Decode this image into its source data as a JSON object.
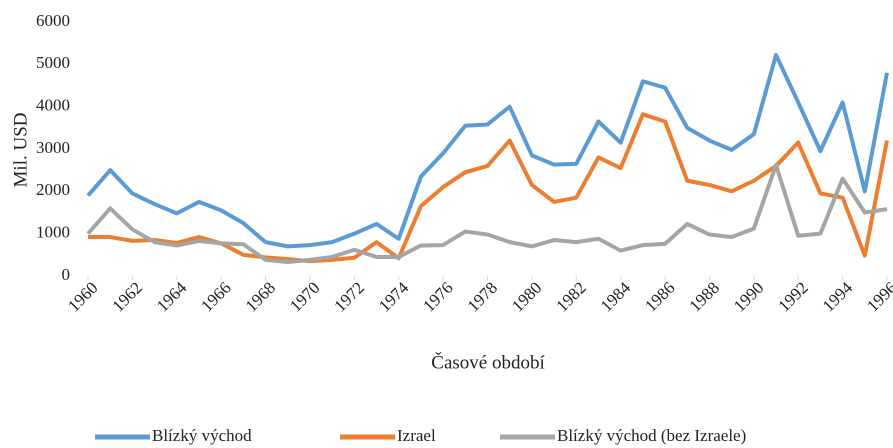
{
  "chart_data": {
    "type": "line",
    "xlabel": "Časové období",
    "ylabel": "Mil. USD",
    "x": [
      1960,
      1961,
      1962,
      1963,
      1964,
      1965,
      1966,
      1967,
      1968,
      1969,
      1970,
      1971,
      1972,
      1973,
      1974,
      1975,
      1976,
      1977,
      1978,
      1979,
      1980,
      1981,
      1982,
      1983,
      1984,
      1985,
      1986,
      1987,
      1988,
      1989,
      1990,
      1991,
      1992,
      1993,
      1994,
      1995,
      1996
    ],
    "series": [
      {
        "name": "Blízký východ",
        "color": "#5b9bd5",
        "values": [
          1900,
          2500,
          1950,
          1700,
          1480,
          1750,
          1550,
          1250,
          800,
          700,
          730,
          800,
          1000,
          1230,
          880,
          2350,
          2900,
          3550,
          3580,
          4000,
          2850,
          2630,
          2650,
          3650,
          3150,
          4600,
          4450,
          3500,
          3200,
          2980,
          3350,
          5220,
          4100,
          2950,
          4100,
          2000,
          4800
        ]
      },
      {
        "name": "Izrael",
        "color": "#ed7d31",
        "values": [
          920,
          920,
          830,
          850,
          780,
          920,
          770,
          500,
          440,
          400,
          350,
          380,
          430,
          800,
          420,
          1650,
          2100,
          2450,
          2600,
          3200,
          2150,
          1750,
          1850,
          2800,
          2550,
          3820,
          3650,
          2250,
          2150,
          2000,
          2250,
          2600,
          3150,
          1950,
          1850,
          480,
          3200
        ]
      },
      {
        "name": "Blízký východ (bez Izraele)",
        "color": "#a5a5a5",
        "values": [
          1000,
          1600,
          1100,
          800,
          720,
          830,
          770,
          750,
          380,
          330,
          380,
          450,
          620,
          450,
          450,
          720,
          730,
          1050,
          980,
          800,
          700,
          850,
          800,
          880,
          600,
          730,
          760,
          1230,
          980,
          920,
          1120,
          2620,
          950,
          1000,
          2300,
          1500,
          1580
        ]
      }
    ],
    "xlim": [
      1960,
      1996
    ],
    "xticks": [
      1960,
      1962,
      1964,
      1966,
      1968,
      1970,
      1972,
      1974,
      1976,
      1978,
      1980,
      1982,
      1984,
      1986,
      1988,
      1990,
      1992,
      1994,
      1996
    ],
    "ylim": [
      0,
      6000
    ],
    "yticks": [
      0,
      1000,
      2000,
      3000,
      4000,
      5000,
      6000
    ],
    "grid": false,
    "legend": "bottom"
  }
}
